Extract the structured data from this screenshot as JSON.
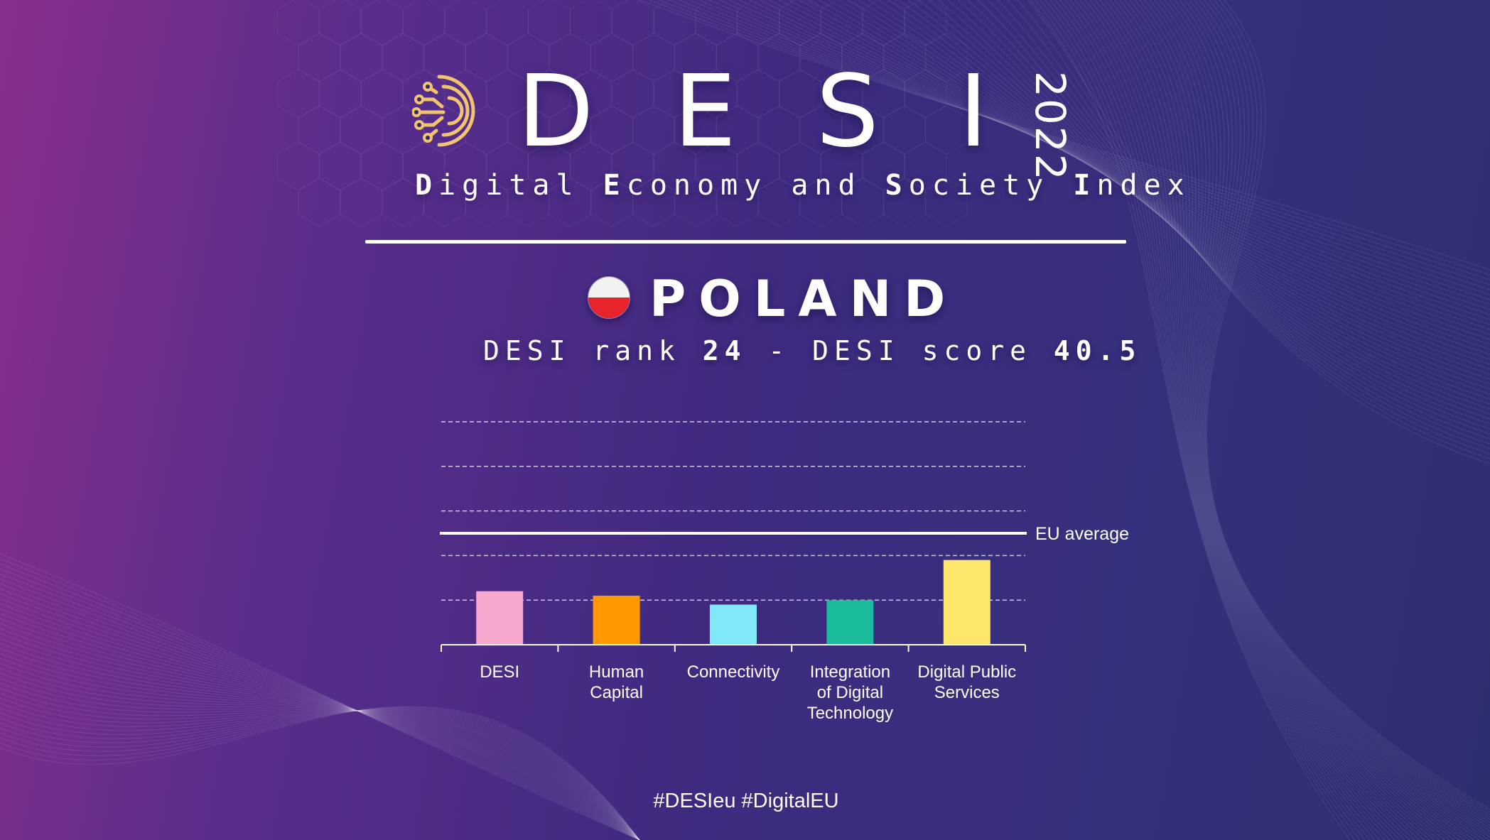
{
  "header": {
    "title_letters": [
      "D",
      "E",
      "S",
      "I"
    ],
    "year": "2022",
    "subtitle": [
      {
        "initial": "D",
        "rest": "igital "
      },
      {
        "initial": "E",
        "rest": "conomy and "
      },
      {
        "initial": "S",
        "rest": "ociety "
      },
      {
        "initial": "I",
        "rest": "ndex"
      }
    ]
  },
  "country": {
    "name": "POLAND",
    "flag_colors": [
      "#f2f2f2",
      "#e8232c"
    ],
    "rank_prefix": "DESI rank ",
    "rank": "24",
    "score_prefix": " - DESI score ",
    "score": "40.5"
  },
  "chart_data": {
    "type": "bar",
    "categories": [
      "DESI",
      "Human Capital",
      "Connectivity",
      "Integration of Digital Technology",
      "Digital Public Services"
    ],
    "category_lines": [
      [
        "DESI"
      ],
      [
        "Human",
        "Capital"
      ],
      [
        "Connectivity"
      ],
      [
        "Integration",
        "of Digital",
        "Technology"
      ],
      [
        "Digital Public",
        "Services"
      ]
    ],
    "values": [
      0.24,
      0.22,
      0.18,
      0.2,
      0.38
    ],
    "value_unit": "fraction of plotted axis range",
    "colors": [
      "#f7a8cc",
      "#ff9900",
      "#80e8f7",
      "#1abc9c",
      "#ffe66d"
    ],
    "reference_line": {
      "label": "EU average",
      "value": 0.5
    },
    "ylim": [
      0,
      1
    ],
    "gridlines": [
      0.2,
      0.4,
      0.6,
      0.8,
      1.0
    ],
    "grid": "dashed horizontal",
    "title": "",
    "xlabel": "",
    "ylabel": ""
  },
  "footer": {
    "hashtags": "#DESIeu  #DigitalEU"
  },
  "colors": {
    "background_left": "#8a2e8c",
    "background_right": "#2c2f6e",
    "logo": "#f2c46d"
  }
}
